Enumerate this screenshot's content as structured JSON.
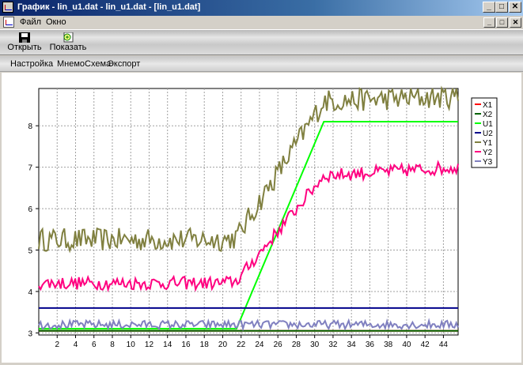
{
  "window": {
    "title": "График - lin_u1.dat - lin_u1.dat - [lin_u1.dat]",
    "min_glyph": "_",
    "max_glyph": "□",
    "close_glyph": "✕"
  },
  "menu": {
    "file": "Файл",
    "window": "Окно"
  },
  "toolbar": {
    "open_label": "Открыть",
    "show_label": "Показать"
  },
  "menu2": {
    "settings": "Настройка",
    "mnemo": "МнемоСхема",
    "export": "Экспорт"
  },
  "chart_data": {
    "type": "line",
    "xlim": [
      0,
      45.6
    ],
    "ylim": [
      2.95,
      8.9
    ],
    "x_ticks": [
      2,
      4,
      6,
      8,
      10,
      12,
      14,
      16,
      18,
      20,
      22,
      24,
      26,
      28,
      30,
      32,
      34,
      36,
      38,
      40,
      42,
      44
    ],
    "y_ticks": [
      3,
      4,
      5,
      6,
      7,
      8
    ],
    "grid": true,
    "legend_position": "right",
    "series": [
      {
        "name": "X1",
        "color": "#ff0000",
        "style": "flat",
        "value": 3.05,
        "noise": 0
      },
      {
        "name": "X2",
        "color": "#006400",
        "style": "flat",
        "value": 3.05,
        "noise": 0
      },
      {
        "name": "U1",
        "color": "#00ff00",
        "style": "ramp",
        "points": [
          [
            0,
            3.1
          ],
          [
            21.5,
            3.1
          ],
          [
            31,
            8.1
          ],
          [
            45.6,
            8.1
          ]
        ],
        "noise": 0
      },
      {
        "name": "U2",
        "color": "#00008b",
        "style": "flat",
        "value": 3.6,
        "noise": 0
      },
      {
        "name": "Y1",
        "color": "#808040",
        "style": "noisy",
        "points": [
          [
            0,
            5.25
          ],
          [
            20,
            5.25
          ],
          [
            21.5,
            5.3
          ],
          [
            31,
            8.6
          ],
          [
            45.6,
            8.7
          ]
        ],
        "noise": 0.28
      },
      {
        "name": "Y2",
        "color": "#ff0080",
        "style": "noisy",
        "points": [
          [
            0,
            4.2
          ],
          [
            20,
            4.2
          ],
          [
            21.5,
            4.25
          ],
          [
            31,
            6.8
          ],
          [
            45.6,
            7.0
          ]
        ],
        "noise": 0.16
      },
      {
        "name": "Y3",
        "color": "#8080c0",
        "style": "noisy",
        "points": [
          [
            0,
            3.2
          ],
          [
            45.6,
            3.2
          ]
        ],
        "noise": 0.1
      }
    ]
  }
}
